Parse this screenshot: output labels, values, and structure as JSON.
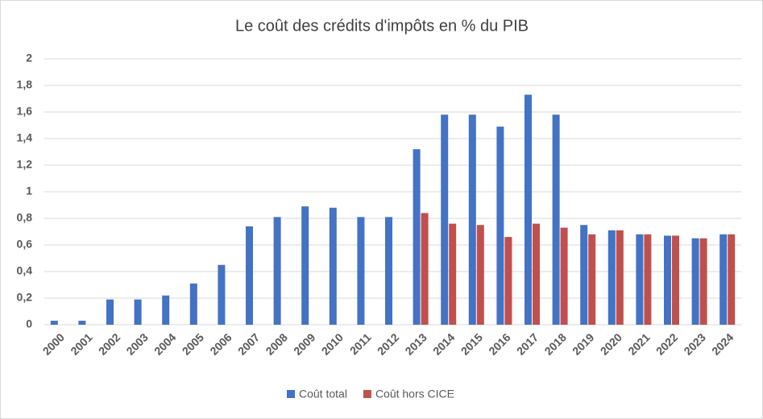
{
  "chart_data": {
    "type": "bar",
    "title": "Le coût des crédits d'impôts en % du PIB",
    "categories": [
      "2000",
      "2001",
      "2002",
      "2003",
      "2004",
      "2005",
      "2006",
      "2007",
      "2008",
      "2009",
      "2010",
      "2011",
      "2012",
      "2013",
      "2014",
      "2015",
      "2016",
      "2017",
      "2018",
      "2019",
      "2020",
      "2021",
      "2022",
      "2023",
      "2024"
    ],
    "series": [
      {
        "name": "Coût total",
        "color": "#4472c4",
        "values": [
          0.03,
          0.03,
          0.19,
          0.19,
          0.22,
          0.31,
          0.45,
          0.74,
          0.81,
          0.89,
          0.88,
          0.81,
          0.81,
          1.32,
          1.58,
          1.58,
          1.49,
          1.73,
          1.58,
          0.75,
          0.71,
          0.68,
          0.67,
          0.65,
          0.68
        ]
      },
      {
        "name": "Coût hors CICE",
        "color": "#c0504d",
        "values": [
          null,
          null,
          null,
          null,
          null,
          null,
          null,
          null,
          null,
          null,
          null,
          null,
          null,
          0.84,
          0.76,
          0.75,
          0.66,
          0.76,
          0.73,
          0.68,
          0.71,
          0.68,
          0.67,
          0.65,
          0.68
        ]
      }
    ],
    "ylim": [
      0,
      2
    ],
    "yticks": [
      0,
      {
        "value": 0.2,
        "label": "0,2"
      },
      {
        "value": 0.4,
        "label": "0,4"
      },
      {
        "value": 0.6,
        "label": "0,6"
      },
      {
        "value": 0.8,
        "label": "0,8"
      },
      1,
      {
        "value": 1.2,
        "label": "1,2"
      },
      {
        "value": 1.4,
        "label": "1,4"
      },
      {
        "value": 1.6,
        "label": "1,6"
      },
      {
        "value": 1.8,
        "label": "1,8"
      },
      2
    ],
    "grid": true,
    "legend": "bottom"
  }
}
